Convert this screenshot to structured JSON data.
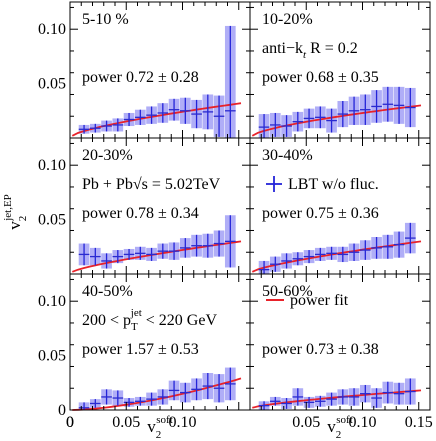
{
  "figure": {
    "ylabel_main": "v",
    "ylabel_sub": "2",
    "ylabel_sup": "jet,EP",
    "xlabel_main": "v",
    "xlabel_sub": "2",
    "xlabel_sup": "soft",
    "y_ticks": [
      "0.10",
      "0.05",
      "0"
    ],
    "x_ticks": [
      "0",
      "0.05",
      "0.10",
      "0.15"
    ],
    "legend_data": "LBT w/o fluc.",
    "legend_fit": "power fit",
    "colors": {
      "band": "#6f6cf0",
      "band_alpha": 0.55,
      "errbar": "#2424d8",
      "fit": "#e8222a",
      "marker": "#2a2ad0"
    }
  },
  "chart_data": [
    {
      "type": "scatter",
      "panel": "5-10%",
      "centrality": "5-10 %",
      "fit_label": "power 0.72 ± 0.28",
      "power": 0.72,
      "power_err": 0.28,
      "xlim": [
        0,
        0.16
      ],
      "ylim": [
        0,
        0.125
      ],
      "x": [
        0.0125,
        0.0225,
        0.0325,
        0.0425,
        0.0525,
        0.0625,
        0.0725,
        0.0825,
        0.0925,
        0.1025,
        0.1125,
        0.1225,
        0.1325,
        0.1425
      ],
      "y": [
        0.008,
        0.009,
        0.011,
        0.012,
        0.017,
        0.019,
        0.021,
        0.023,
        0.026,
        0.025,
        0.022,
        0.024,
        0.02,
        0.025
      ],
      "yerr": [
        0.004,
        0.004,
        0.005,
        0.006,
        0.006,
        0.007,
        0.008,
        0.009,
        0.01,
        0.012,
        0.013,
        0.016,
        0.019,
        0.078
      ],
      "fit": {
        "x0": 0.002,
        "x1": 0.152,
        "y0": 0.002,
        "y1": 0.032
      }
    },
    {
      "type": "scatter",
      "panel": "10-20%",
      "centrality": "10-20%",
      "extra_text": "anti−k",
      "extra_sub": "t",
      "extra_text2": "R = 0.2",
      "fit_label": "power 0.68 ± 0.35",
      "power": 0.68,
      "power_err": 0.35,
      "xlim": [
        0,
        0.16
      ],
      "ylim": [
        0,
        0.125
      ],
      "x": [
        0.0125,
        0.0225,
        0.0325,
        0.0425,
        0.0525,
        0.0625,
        0.0725,
        0.0825,
        0.0925,
        0.1025,
        0.1125,
        0.1225,
        0.1325,
        0.1425
      ],
      "y": [
        0.01,
        0.012,
        0.011,
        0.015,
        0.018,
        0.019,
        0.016,
        0.022,
        0.025,
        0.026,
        0.029,
        0.031,
        0.03,
        0.028
      ],
      "yerr": [
        0.012,
        0.011,
        0.01,
        0.009,
        0.009,
        0.01,
        0.011,
        0.012,
        0.013,
        0.014,
        0.015,
        0.016,
        0.017,
        0.018
      ],
      "fit": {
        "x0": 0.002,
        "x1": 0.152,
        "y0": 0.002,
        "y1": 0.03
      }
    },
    {
      "type": "scatter",
      "panel": "20-30%",
      "centrality": "20-30%",
      "extra_text": "Pb + Pb√s = 5.02TeV",
      "fit_label": "power 0.78 ± 0.34",
      "power": 0.78,
      "power_err": 0.34,
      "xlim": [
        0,
        0.16
      ],
      "ylim": [
        0,
        0.125
      ],
      "x": [
        0.0125,
        0.0225,
        0.0325,
        0.0425,
        0.0525,
        0.0625,
        0.0725,
        0.0825,
        0.0925,
        0.1025,
        0.1125,
        0.1225,
        0.1325,
        0.1425
      ],
      "y": [
        0.018,
        0.016,
        0.012,
        0.016,
        0.018,
        0.019,
        0.018,
        0.021,
        0.021,
        0.024,
        0.026,
        0.026,
        0.028,
        0.03
      ],
      "yerr": [
        0.01,
        0.008,
        0.007,
        0.006,
        0.005,
        0.006,
        0.006,
        0.007,
        0.008,
        0.009,
        0.01,
        0.011,
        0.012,
        0.024
      ],
      "fit": {
        "x0": 0.002,
        "x1": 0.152,
        "y0": 0.002,
        "y1": 0.03
      }
    },
    {
      "type": "scatter",
      "panel": "30-40%",
      "centrality": "30-40%",
      "fit_label": "power 0.75 ± 0.36",
      "power": 0.75,
      "power_err": 0.36,
      "xlim": [
        0,
        0.16
      ],
      "ylim": [
        0,
        0.125
      ],
      "x": [
        0.0125,
        0.0225,
        0.0325,
        0.0425,
        0.0525,
        0.0625,
        0.0725,
        0.0825,
        0.0925,
        0.1025,
        0.1125,
        0.1225,
        0.1325,
        0.1425
      ],
      "y": [
        0.004,
        0.009,
        0.012,
        0.014,
        0.016,
        0.018,
        0.019,
        0.018,
        0.02,
        0.022,
        0.024,
        0.025,
        0.027,
        0.033
      ],
      "yerr": [
        0.008,
        0.007,
        0.007,
        0.006,
        0.006,
        0.006,
        0.006,
        0.007,
        0.008,
        0.009,
        0.01,
        0.011,
        0.012,
        0.014
      ],
      "fit": {
        "x0": 0.002,
        "x1": 0.152,
        "y0": 0.002,
        "y1": 0.03
      }
    },
    {
      "type": "scatter",
      "panel": "40-50%",
      "centrality": "40-50%",
      "extra_text": "200 < p",
      "extra_sub": "T",
      "extra_sup": "jet",
      "extra_text2": "< 220 GeV",
      "fit_label": "power 1.57 ± 0.53",
      "power": 1.57,
      "power_err": 0.53,
      "xlim": [
        0,
        0.16
      ],
      "ylim": [
        0,
        0.125
      ],
      "x": [
        0.0125,
        0.0225,
        0.0325,
        0.0425,
        0.0525,
        0.0625,
        0.0725,
        0.0825,
        0.0925,
        0.1025,
        0.1125,
        0.1225,
        0.1325,
        0.1425
      ],
      "y": [
        0.002,
        0.006,
        0.012,
        0.011,
        0.007,
        0.008,
        0.01,
        0.012,
        0.018,
        0.016,
        0.019,
        0.022,
        0.02,
        0.024
      ],
      "yerr": [
        0.005,
        0.004,
        0.007,
        0.007,
        0.004,
        0.004,
        0.006,
        0.007,
        0.009,
        0.009,
        0.01,
        0.012,
        0.013,
        0.015
      ],
      "fit": {
        "x0": 0.002,
        "x1": 0.152,
        "y0": 0.0,
        "y1": 0.029
      }
    },
    {
      "type": "scatter",
      "panel": "50-60%",
      "centrality": "50-60%",
      "fit_label": "power 0.73 ± 0.38",
      "power": 0.73,
      "power_err": 0.38,
      "xlim": [
        0,
        0.16
      ],
      "ylim": [
        0,
        0.125
      ],
      "x": [
        0.0125,
        0.0225,
        0.0325,
        0.0425,
        0.0525,
        0.0625,
        0.0725,
        0.0825,
        0.0925,
        0.1025,
        0.1125,
        0.1225,
        0.1325,
        0.1425
      ],
      "y": [
        0.004,
        0.008,
        0.006,
        0.012,
        0.007,
        0.008,
        0.01,
        0.012,
        0.012,
        0.015,
        0.011,
        0.016,
        0.015,
        0.017
      ],
      "yerr": [
        0.004,
        0.004,
        0.005,
        0.008,
        0.005,
        0.005,
        0.006,
        0.007,
        0.008,
        0.008,
        0.009,
        0.01,
        0.01,
        0.012
      ],
      "fit": {
        "x0": 0.002,
        "x1": 0.152,
        "y0": 0.002,
        "y1": 0.018
      }
    }
  ]
}
